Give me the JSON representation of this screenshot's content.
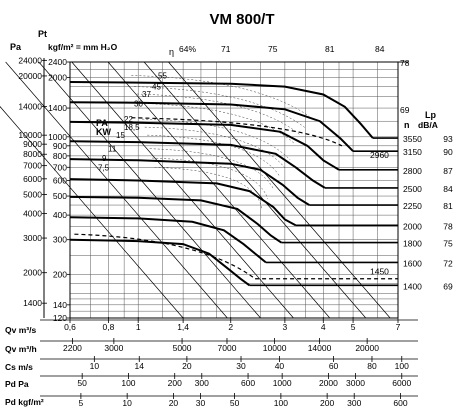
{
  "chart_data": {
    "type": "line",
    "title": "VM 800/T",
    "left_axes": {
      "pt_symbol": "Pt",
      "pa_label": "Pa",
      "kgf_label": "kgf/m² = mm H₂O",
      "pa_ticks": [
        "24000",
        "20000",
        "14000",
        "10000",
        "9000",
        "8000",
        "7000",
        "6000",
        "5000",
        "4000",
        "3000",
        "2000",
        "1400"
      ],
      "kgf_ticks": [
        "2400",
        "2000",
        "1400",
        "1000",
        "900",
        "800",
        "700",
        "600",
        "500",
        "400",
        "300",
        "200",
        "140",
        "120"
      ]
    },
    "right_axes": {
      "n_label": "n",
      "lp_label": "Lp",
      "lp_unit": "dB/A",
      "speeds": [
        "3550",
        "3150",
        "2800",
        "2500",
        "2250",
        "2000",
        "1800",
        "1600",
        "1400"
      ],
      "lp": [
        "93",
        "90",
        "87",
        "84",
        "81",
        "78",
        "75",
        "72",
        "69"
      ],
      "extra_speeds": [
        "2960",
        "1450"
      ]
    },
    "efficiency_lines": {
      "eta_symbol": "η",
      "labels": [
        "64%",
        "71",
        "75",
        "81",
        "84",
        "78",
        "69"
      ]
    },
    "power": {
      "label": "PA",
      "unit": "KW",
      "values": [
        "55",
        "45",
        "37",
        "30",
        "22",
        "18,5",
        "15",
        "11",
        "9",
        "7,5"
      ]
    },
    "bottom_scales": [
      {
        "label": "Qv m³/s",
        "ticks": [
          "0,6",
          "0,8",
          "1",
          "1,4",
          "2",
          "3",
          "4",
          "5",
          "7"
        ]
      },
      {
        "label": "Qv m³/h",
        "ticks": [
          "2200",
          "3000",
          "5000",
          "7000",
          "10000",
          "14000",
          "20000"
        ]
      },
      {
        "label": "Cs m/s",
        "ticks": [
          "10",
          "14",
          "20",
          "30",
          "40",
          "60",
          "80",
          "100"
        ]
      },
      {
        "label": "Pd Pa",
        "ticks": [
          "50",
          "100",
          "200",
          "300",
          "600",
          "1000",
          "2000",
          "3000",
          "6000"
        ]
      },
      {
        "label": "Pd kgf/m²",
        "ticks": [
          "5",
          "10",
          "20",
          "30",
          "50",
          "100",
          "200",
          "300",
          "600"
        ]
      }
    ],
    "xlim_m3s": [
      0.6,
      7
    ],
    "ylim_kgf": [
      120,
      2400
    ],
    "x_scale": "log",
    "y_scale": "log",
    "grid": true,
    "fan_curves": [
      {
        "name": "3550",
        "x": [
          0.6,
          1.0,
          2.0,
          3.0,
          4.0,
          4.7,
          5.3,
          5.8
        ],
        "y": [
          1900,
          1885,
          1860,
          1800,
          1640,
          1420,
          1160,
          985
        ]
      },
      {
        "name": "3150",
        "x": [
          0.6,
          1.0,
          2.0,
          3.0,
          3.9,
          4.55,
          5.0
        ],
        "y": [
          1500,
          1490,
          1460,
          1380,
          1200,
          980,
          845
        ]
      },
      {
        "name": "2800",
        "x": [
          0.6,
          1.0,
          2.0,
          2.9,
          3.55,
          4.0,
          4.5
        ],
        "y": [
          1190,
          1180,
          1150,
          1060,
          900,
          760,
          680
        ]
      },
      {
        "name": "2500",
        "x": [
          0.6,
          1.0,
          2.0,
          2.8,
          3.25,
          3.7,
          4.05
        ],
        "y": [
          950,
          940,
          910,
          820,
          700,
          600,
          550
        ]
      },
      {
        "name": "2250",
        "x": [
          0.6,
          1.0,
          2.0,
          2.5,
          2.95,
          3.3,
          3.6
        ],
        "y": [
          770,
          760,
          730,
          680,
          570,
          490,
          450
        ]
      },
      {
        "name": "2000",
        "x": [
          0.6,
          1.0,
          1.8,
          2.3,
          2.75,
          3.0,
          3.25
        ],
        "y": [
          610,
          600,
          580,
          530,
          440,
          380,
          355
        ]
      },
      {
        "name": "1800",
        "x": [
          0.6,
          1.0,
          1.6,
          2.1,
          2.45,
          2.7,
          2.92
        ],
        "y": [
          495,
          490,
          475,
          430,
          360,
          315,
          290
        ]
      },
      {
        "name": "1600",
        "x": [
          0.6,
          1.0,
          1.5,
          1.9,
          2.2,
          2.4,
          2.6
        ],
        "y": [
          390,
          385,
          370,
          335,
          285,
          255,
          230
        ]
      },
      {
        "name": "1400",
        "x": [
          0.6,
          1.0,
          1.4,
          1.7,
          1.95,
          2.15,
          2.3
        ],
        "y": [
          300,
          295,
          285,
          255,
          215,
          190,
          176
        ]
      }
    ]
  }
}
